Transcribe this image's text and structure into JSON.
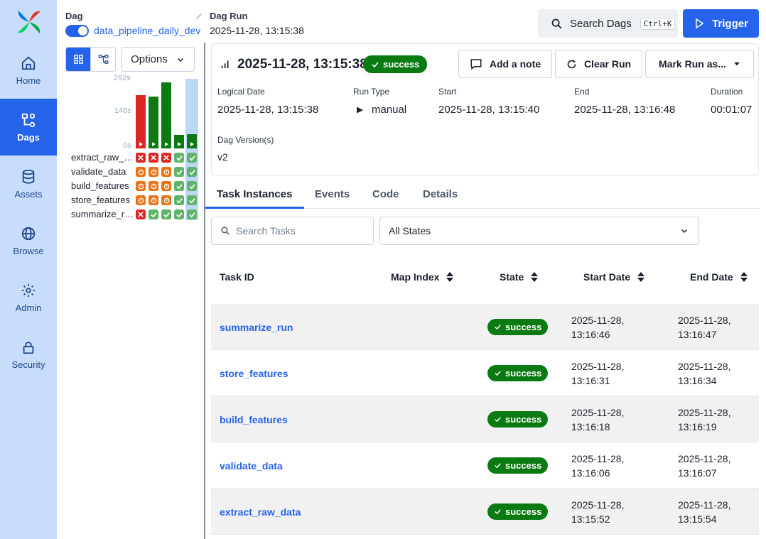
{
  "sidebar": {
    "items": [
      {
        "label": "Home",
        "icon": "home-icon"
      },
      {
        "label": "Dags",
        "icon": "dags-icon"
      },
      {
        "label": "Assets",
        "icon": "database-icon"
      },
      {
        "label": "Browse",
        "icon": "globe-icon"
      },
      {
        "label": "Admin",
        "icon": "gear-icon"
      },
      {
        "label": "Security",
        "icon": "lock-icon"
      }
    ],
    "active": "Dags"
  },
  "breadcrumb": {
    "dag_label": "Dag",
    "dag_name": "data_pipeline_daily_dev",
    "run_label": "Dag Run",
    "run_name": "2025-11-28, 13:15:38"
  },
  "header": {
    "search_label": "Search Dags",
    "search_shortcut": "Ctrl+K",
    "trigger_label": "Trigger"
  },
  "grid": {
    "options_label": "Options",
    "axis": {
      "max": "292s",
      "mid": "146s",
      "min": "0s"
    },
    "run_durations_fraction": [
      0.75,
      0.73,
      0.93,
      0.19,
      0.2
    ],
    "run_bar_states": [
      "failed",
      "success",
      "success",
      "success",
      "success"
    ],
    "tasks": [
      {
        "label": "extract_raw_…",
        "states": [
          "failed",
          "failed",
          "failed",
          "success",
          "success"
        ]
      },
      {
        "label": "validate_data",
        "states": [
          "upstream",
          "upstream",
          "upstream",
          "success",
          "success"
        ]
      },
      {
        "label": "build_features",
        "states": [
          "upstream",
          "upstream",
          "upstream",
          "success",
          "success"
        ]
      },
      {
        "label": "store_features",
        "states": [
          "upstream",
          "upstream",
          "upstream",
          "success",
          "success"
        ]
      },
      {
        "label": "summarize_r…",
        "states": [
          "failed",
          "success",
          "success",
          "success",
          "success"
        ]
      }
    ],
    "colors": {
      "failed": "#dc2626",
      "success": "#0b7a12",
      "upstream": "#ea7317",
      "success_cell": "#5fb36a",
      "highlight": "#bdd7f7"
    }
  },
  "run": {
    "title": "2025-11-28, 13:15:38",
    "state": "success",
    "actions": {
      "note": "Add a note",
      "clear": "Clear Run",
      "mark": "Mark Run as..."
    },
    "meta": {
      "logical_date_label": "Logical Date",
      "logical_date": "2025-11-28, 13:15:38",
      "run_type_label": "Run Type",
      "run_type": "manual",
      "start_label": "Start",
      "start": "2025-11-28, 13:15:40",
      "end_label": "End",
      "end": "2025-11-28, 13:16:48",
      "duration_label": "Duration",
      "duration": "00:01:07",
      "version_label": "Dag Version(s)",
      "version": "v2"
    }
  },
  "tabs": [
    "Task Instances",
    "Events",
    "Code",
    "Details"
  ],
  "active_tab": "Task Instances",
  "filters": {
    "search_placeholder": "Search Tasks",
    "states_value": "All States"
  },
  "table": {
    "columns": {
      "task_id": "Task ID",
      "map_index": "Map Index",
      "state": "State",
      "start": "Start Date",
      "end": "End Date"
    },
    "rows": [
      {
        "task": "summarize_run",
        "state": "success",
        "start_date": "2025-11-28,",
        "start_time": "13:16:46",
        "end_date": "2025-11-28,",
        "end_time": "13:16:47"
      },
      {
        "task": "store_features",
        "state": "success",
        "start_date": "2025-11-28,",
        "start_time": "13:16:31",
        "end_date": "2025-11-28,",
        "end_time": "13:16:34"
      },
      {
        "task": "build_features",
        "state": "success",
        "start_date": "2025-11-28,",
        "start_time": "13:16:18",
        "end_date": "2025-11-28,",
        "end_time": "13:16:19"
      },
      {
        "task": "validate_data",
        "state": "success",
        "start_date": "2025-11-28,",
        "start_time": "13:16:06",
        "end_date": "2025-11-28,",
        "end_time": "13:16:07"
      },
      {
        "task": "extract_raw_data",
        "state": "success",
        "start_date": "2025-11-28,",
        "start_time": "13:15:52",
        "end_date": "2025-11-28,",
        "end_time": "13:15:54"
      }
    ]
  },
  "accent": "#2563eb",
  "success_color": "#0b7a12"
}
